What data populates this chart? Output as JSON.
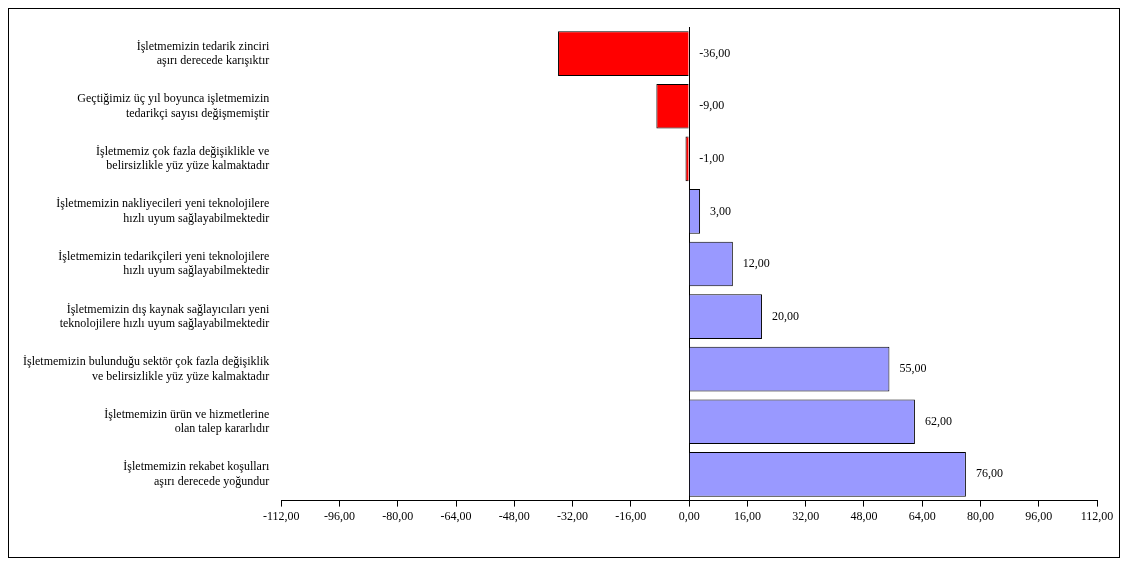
{
  "chart_data": {
    "type": "bar",
    "orientation": "horizontal",
    "categories": [
      "İşletmemizin tedarik zinciri aşırı derecede karışıktır",
      "Geçtiğimiz üç yıl boyunca işletmemizin tedarikçi sayısı değişmemiştir",
      "İşletmemiz çok fazla değişiklikle ve belirsizlikle yüz yüze kalmaktadır",
      "İşletmemizin nakliyecileri yeni teknolojilere hızlı uyum sağlayabilmektedir",
      "İşletmemizin tedarikçileri yeni teknolojilere hızlı uyum sağlayabilmektedir",
      "İşletmemizin dış kaynak sağlayıcıları yeni teknolojilere hızlı uyum sağlayabilmektedir",
      "İşletmemizin bulunduğu sektör çok fazla değişiklik ve belirsizlikle yüz yüze kalmaktadır",
      "İşletmemizin ürün ve hizmetlerine olan talep kararlıdır",
      "İşletmemizin rekabet koşulları aşırı derecede yoğundur"
    ],
    "values": [
      -36,
      -9,
      -1,
      3,
      12,
      20,
      55,
      62,
      76
    ],
    "colors": [
      "#ff0000",
      "#ff0000",
      "#ff0000",
      "#9999ff",
      "#9999ff",
      "#9999ff",
      "#9999ff",
      "#9999ff",
      "#9999ff"
    ],
    "value_labels": [
      "-36,00",
      "-9,00",
      "-1,00",
      "3,00",
      "12,00",
      "20,00",
      "55,00",
      "62,00",
      "76,00"
    ],
    "xlim": [
      -112,
      112
    ],
    "xticks": [
      {
        "value": -112,
        "label": "-112,00"
      },
      {
        "value": -96,
        "label": "-96,00"
      },
      {
        "value": -80,
        "label": "-80,00"
      },
      {
        "value": -64,
        "label": "-64,00"
      },
      {
        "value": -48,
        "label": "-48,00"
      },
      {
        "value": -32,
        "label": "-32,00"
      },
      {
        "value": -16,
        "label": "-16,00"
      },
      {
        "value": 0,
        "label": "0,00"
      },
      {
        "value": 16,
        "label": "16,00"
      },
      {
        "value": 32,
        "label": "32,00"
      },
      {
        "value": 48,
        "label": "48,00"
      },
      {
        "value": 64,
        "label": "64,00"
      },
      {
        "value": 80,
        "label": "80,00"
      },
      {
        "value": 96,
        "label": "96,00"
      },
      {
        "value": 112,
        "label": "112,00"
      }
    ],
    "legend": false
  }
}
